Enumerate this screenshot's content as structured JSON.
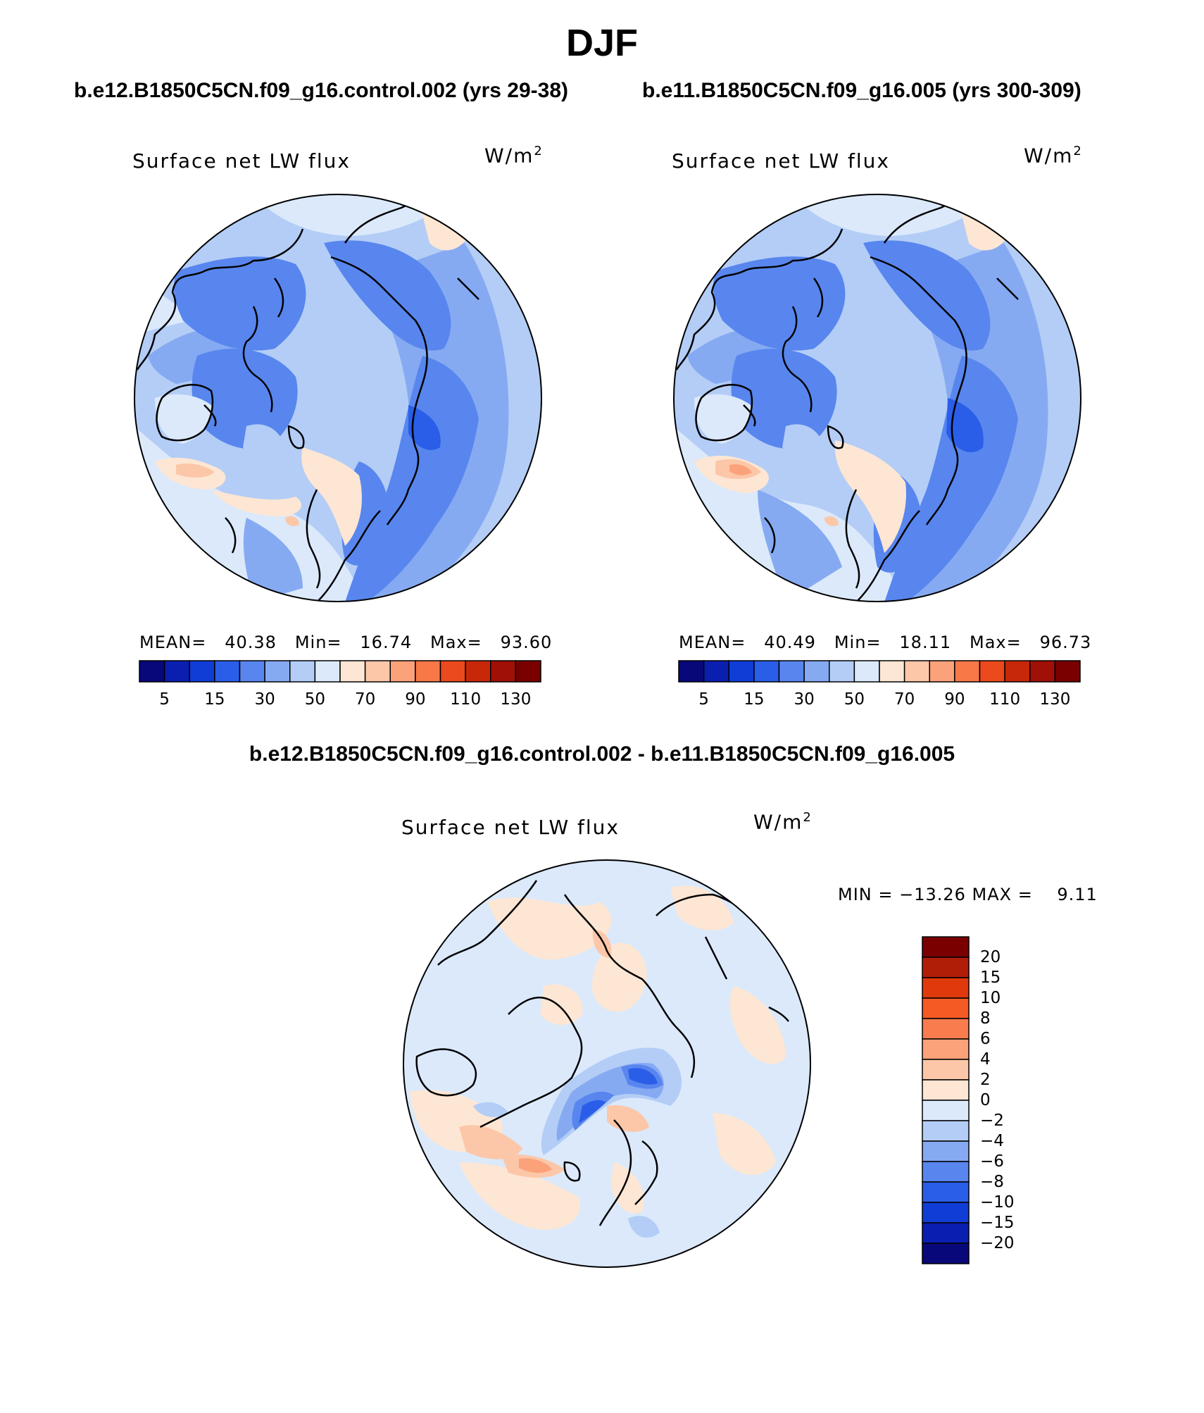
{
  "title": "DJF",
  "panels": [
    {
      "case": "b.e12.B1850C5CN.f09_g16.control.002 (yrs 29-38)",
      "variable_label": "Surface net LW flux",
      "units": "W/m",
      "units_exp": "2",
      "stats": "MEAN=   40.38   Min=   16.74   Max=   93.60",
      "colorbar": {
        "colors": [
          "#08087a",
          "#0a1fb0",
          "#0f3dd6",
          "#2a5ee8",
          "#5886ee",
          "#86aaf2",
          "#b3cdf6",
          "#dbe9fb",
          "#fde6d4",
          "#fcc7a8",
          "#fba27b",
          "#f87848",
          "#ea4a1c",
          "#c8280a",
          "#a01006",
          "#7a0000"
        ],
        "tick_labels": [
          "5",
          "15",
          "30",
          "50",
          "70",
          "90",
          "110",
          "130"
        ]
      }
    },
    {
      "case": "b.e11.B1850C5CN.f09_g16.005 (yrs 300-309)",
      "variable_label": "Surface net LW flux",
      "units": "W/m",
      "units_exp": "2",
      "stats": "MEAN=   40.49   Min=   18.11   Max=   96.73",
      "colorbar": {
        "colors": [
          "#08087a",
          "#0a1fb0",
          "#0f3dd6",
          "#2a5ee8",
          "#5886ee",
          "#86aaf2",
          "#b3cdf6",
          "#dbe9fb",
          "#fde6d4",
          "#fcc7a8",
          "#fba27b",
          "#f87848",
          "#ea4a1c",
          "#c8280a",
          "#a01006",
          "#7a0000"
        ],
        "tick_labels": [
          "5",
          "15",
          "30",
          "50",
          "70",
          "90",
          "110",
          "130"
        ]
      }
    }
  ],
  "difference": {
    "case": "b.e12.B1850C5CN.f09_g16.control.002 - b.e11.B1850C5CN.f09_g16.005",
    "variable_label": "Surface net LW flux",
    "units": "W/m",
    "units_exp": "2",
    "stats": "MIN = −13.26 MAX =    9.11",
    "colorbar": {
      "colors_top_to_bottom": [
        "#7a0000",
        "#b01e08",
        "#e03a0c",
        "#f55a24",
        "#f87c4e",
        "#fba27b",
        "#fcc7a8",
        "#fde6d4",
        "#dbe9fb",
        "#b3cdf6",
        "#86aaf2",
        "#5886ee",
        "#2a5ee8",
        "#0f3dd6",
        "#0a1fb0",
        "#08087a"
      ],
      "tick_labels": [
        "20",
        "15",
        "10",
        "8",
        "6",
        "4",
        "2",
        "0",
        "−2",
        "−4",
        "−6",
        "−8",
        "−10",
        "−15",
        "−20"
      ]
    }
  },
  "map_colors": {
    "cb": "#b3cdf6",
    "cm": "#86aaf2",
    "cd": "#5886ee",
    "ce": "#2a5ee8",
    "cl": "#dbe9fb",
    "ct": "#fde6d4",
    "cs": "#fcc7a8",
    "co": "#fba27b",
    "cr": "#f87848",
    "coast": "#000000"
  }
}
